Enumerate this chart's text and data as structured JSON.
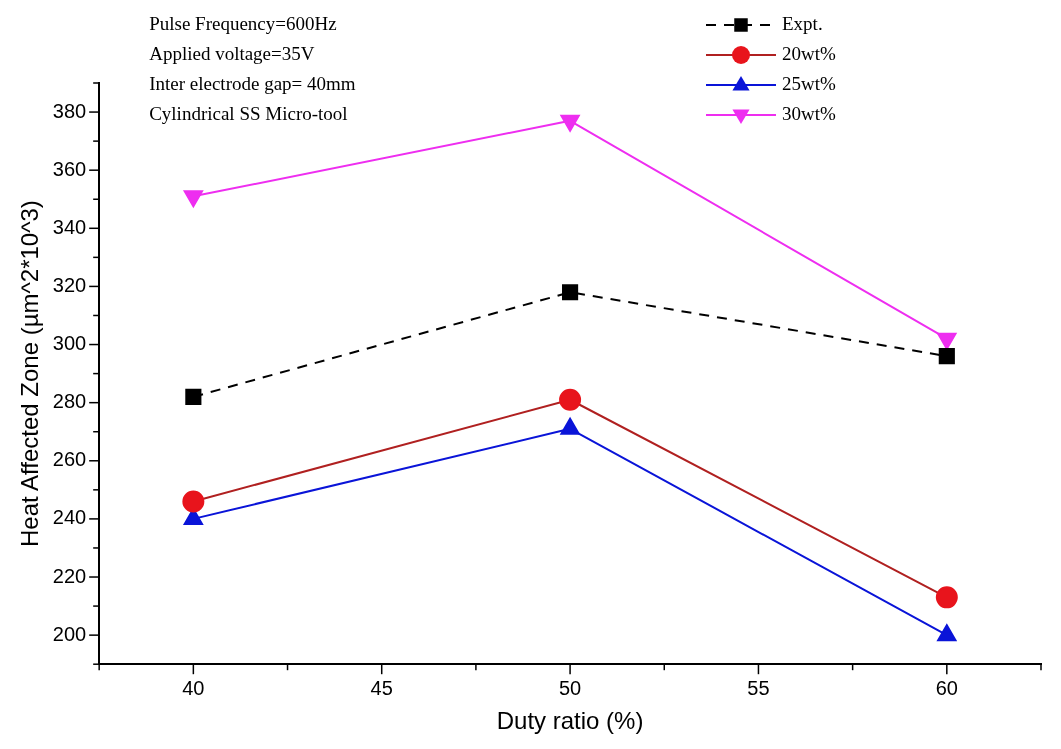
{
  "chart_data": {
    "type": "line",
    "xlabel": "Duty ratio (%)",
    "ylabel": "Heat Affected Zone (µm^2*10^3)",
    "x": [
      40,
      50,
      60
    ],
    "xlim": [
      37.5,
      62.5
    ],
    "xticks": [
      {
        "value": 37.5,
        "label": null
      },
      40,
      {
        "value": 42.5,
        "label": null
      },
      45,
      {
        "value": 47.5,
        "label": null
      },
      50,
      {
        "value": 52.5,
        "label": null
      },
      55,
      {
        "value": 57.5,
        "label": null
      },
      60,
      {
        "value": 62.5,
        "label": null
      }
    ],
    "ylim": [
      190,
      390
    ],
    "yticks": [
      {
        "value": 190,
        "label": null
      },
      200,
      {
        "value": 210,
        "label": null
      },
      220,
      {
        "value": 230,
        "label": null
      },
      240,
      {
        "value": 250,
        "label": null
      },
      260,
      {
        "value": 270,
        "label": null
      },
      280,
      {
        "value": 290,
        "label": null
      },
      300,
      {
        "value": 310,
        "label": null
      },
      320,
      {
        "value": 330,
        "label": null
      },
      340,
      {
        "value": 350,
        "label": null
      },
      360,
      {
        "value": 370,
        "label": null
      },
      380,
      {
        "value": 390,
        "label": null
      }
    ],
    "grid": false,
    "legend": "top right",
    "annotations": [
      "Pulse Frequency=600Hz",
      "Applied voltage=35V",
      "Inter electrode gap= 40mm",
      "Cylindrical SS Micro-tool"
    ],
    "series": [
      {
        "name": "Expt.",
        "color": "#000000",
        "marker": "square",
        "line_style": "dashed",
        "values": [
          282,
          318,
          296
        ]
      },
      {
        "name": "20wt%",
        "color": "#e8141c",
        "marker": "circle",
        "line_style": "solid",
        "values": [
          246,
          281,
          213
        ]
      },
      {
        "name": "25wt%",
        "color": "#0a14d8",
        "marker": "triangle",
        "line_style": "solid",
        "values": [
          240,
          271,
          200
        ]
      },
      {
        "name": "30wt%",
        "color": "#ee2ef0",
        "marker": "triangle-down",
        "line_style": "solid",
        "values": [
          351,
          377,
          302
        ]
      }
    ]
  }
}
